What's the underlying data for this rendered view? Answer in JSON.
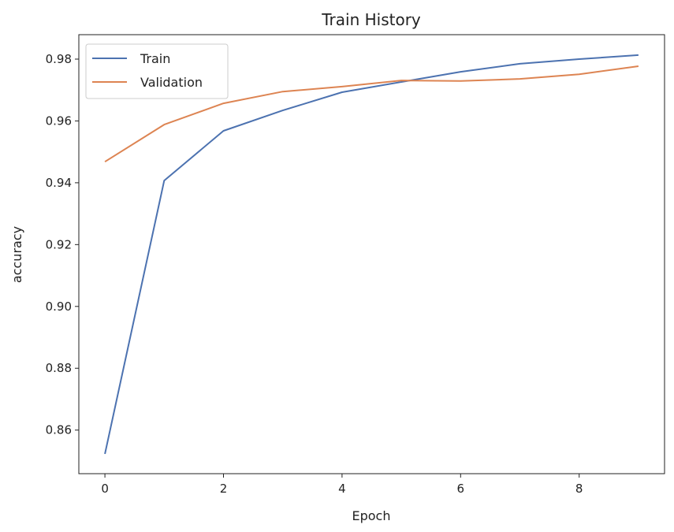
{
  "chart_data": {
    "type": "line",
    "title": "Train History",
    "xlabel": "Epoch",
    "ylabel": "accuracy",
    "x": [
      0,
      1,
      2,
      3,
      4,
      5,
      6,
      7,
      8,
      9
    ],
    "xlim": [
      -0.44,
      9.44
    ],
    "ylim": [
      0.8459,
      0.9879
    ],
    "xticks": [
      0,
      2,
      4,
      6,
      8
    ],
    "xtick_labels": [
      "0",
      "2",
      "4",
      "6",
      "8"
    ],
    "yticks": [
      0.86,
      0.88,
      0.9,
      0.92,
      0.94,
      0.96,
      0.98
    ],
    "ytick_labels": [
      "0.86",
      "0.88",
      "0.90",
      "0.92",
      "0.94",
      "0.96",
      "0.98"
    ],
    "grid": false,
    "legend_position": "top-left",
    "series": [
      {
        "name": "Train",
        "color": "#4c72b0",
        "values": [
          0.8523,
          0.9407,
          0.9568,
          0.9634,
          0.9693,
          0.9726,
          0.9759,
          0.9785,
          0.98,
          0.9813
        ]
      },
      {
        "name": "Validation",
        "color": "#dd8452",
        "values": [
          0.9468,
          0.9588,
          0.9657,
          0.9695,
          0.9711,
          0.9731,
          0.9729,
          0.9736,
          0.9751,
          0.9777
        ]
      }
    ]
  }
}
